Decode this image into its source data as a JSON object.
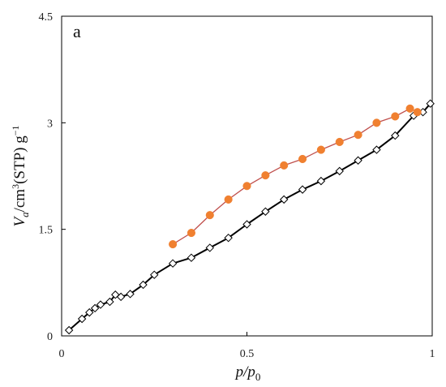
{
  "chart_data": {
    "type": "line",
    "panel_label": "a",
    "xlabel": {
      "main": "p/p",
      "sub": "0"
    },
    "ylabel": {
      "main": "V",
      "sub": "a",
      "rest": "/cm",
      "sup": "3",
      "rest2": "(STP) g",
      "sup2": "−1"
    },
    "xlim": [
      0,
      1
    ],
    "ylim": [
      0,
      4.5
    ],
    "xticks": [
      0,
      0.5,
      1
    ],
    "xtick_labels": [
      "0",
      "0.5",
      "1"
    ],
    "yticks": [
      0,
      1.5,
      3,
      4.5
    ],
    "ytick_labels": [
      "0",
      "1.5",
      "3",
      "4.5"
    ],
    "grid": false,
    "series": [
      {
        "marker": "diamond-open",
        "color": "#000000",
        "x": [
          0.02,
          0.055,
          0.075,
          0.09,
          0.105,
          0.13,
          0.145,
          0.16,
          0.185,
          0.22,
          0.25,
          0.3,
          0.35,
          0.4,
          0.45,
          0.5,
          0.55,
          0.6,
          0.65,
          0.7,
          0.75,
          0.8,
          0.85,
          0.9,
          0.95,
          0.975,
          0.995
        ],
        "y": [
          0.08,
          0.24,
          0.33,
          0.39,
          0.44,
          0.48,
          0.58,
          0.55,
          0.59,
          0.72,
          0.86,
          1.02,
          1.1,
          1.24,
          1.38,
          1.57,
          1.75,
          1.92,
          2.06,
          2.18,
          2.32,
          2.47,
          2.62,
          2.82,
          3.1,
          3.15,
          3.27
        ]
      },
      {
        "marker": "circle-filled",
        "color": "#f08030",
        "line_color": "#c0504d",
        "x": [
          0.3,
          0.35,
          0.4,
          0.45,
          0.5,
          0.55,
          0.6,
          0.65,
          0.7,
          0.75,
          0.8,
          0.85,
          0.9,
          0.94,
          0.96
        ],
        "y": [
          1.29,
          1.45,
          1.7,
          1.92,
          2.11,
          2.26,
          2.4,
          2.49,
          2.62,
          2.73,
          2.83,
          3.0,
          3.09,
          3.2,
          3.15
        ]
      }
    ]
  }
}
